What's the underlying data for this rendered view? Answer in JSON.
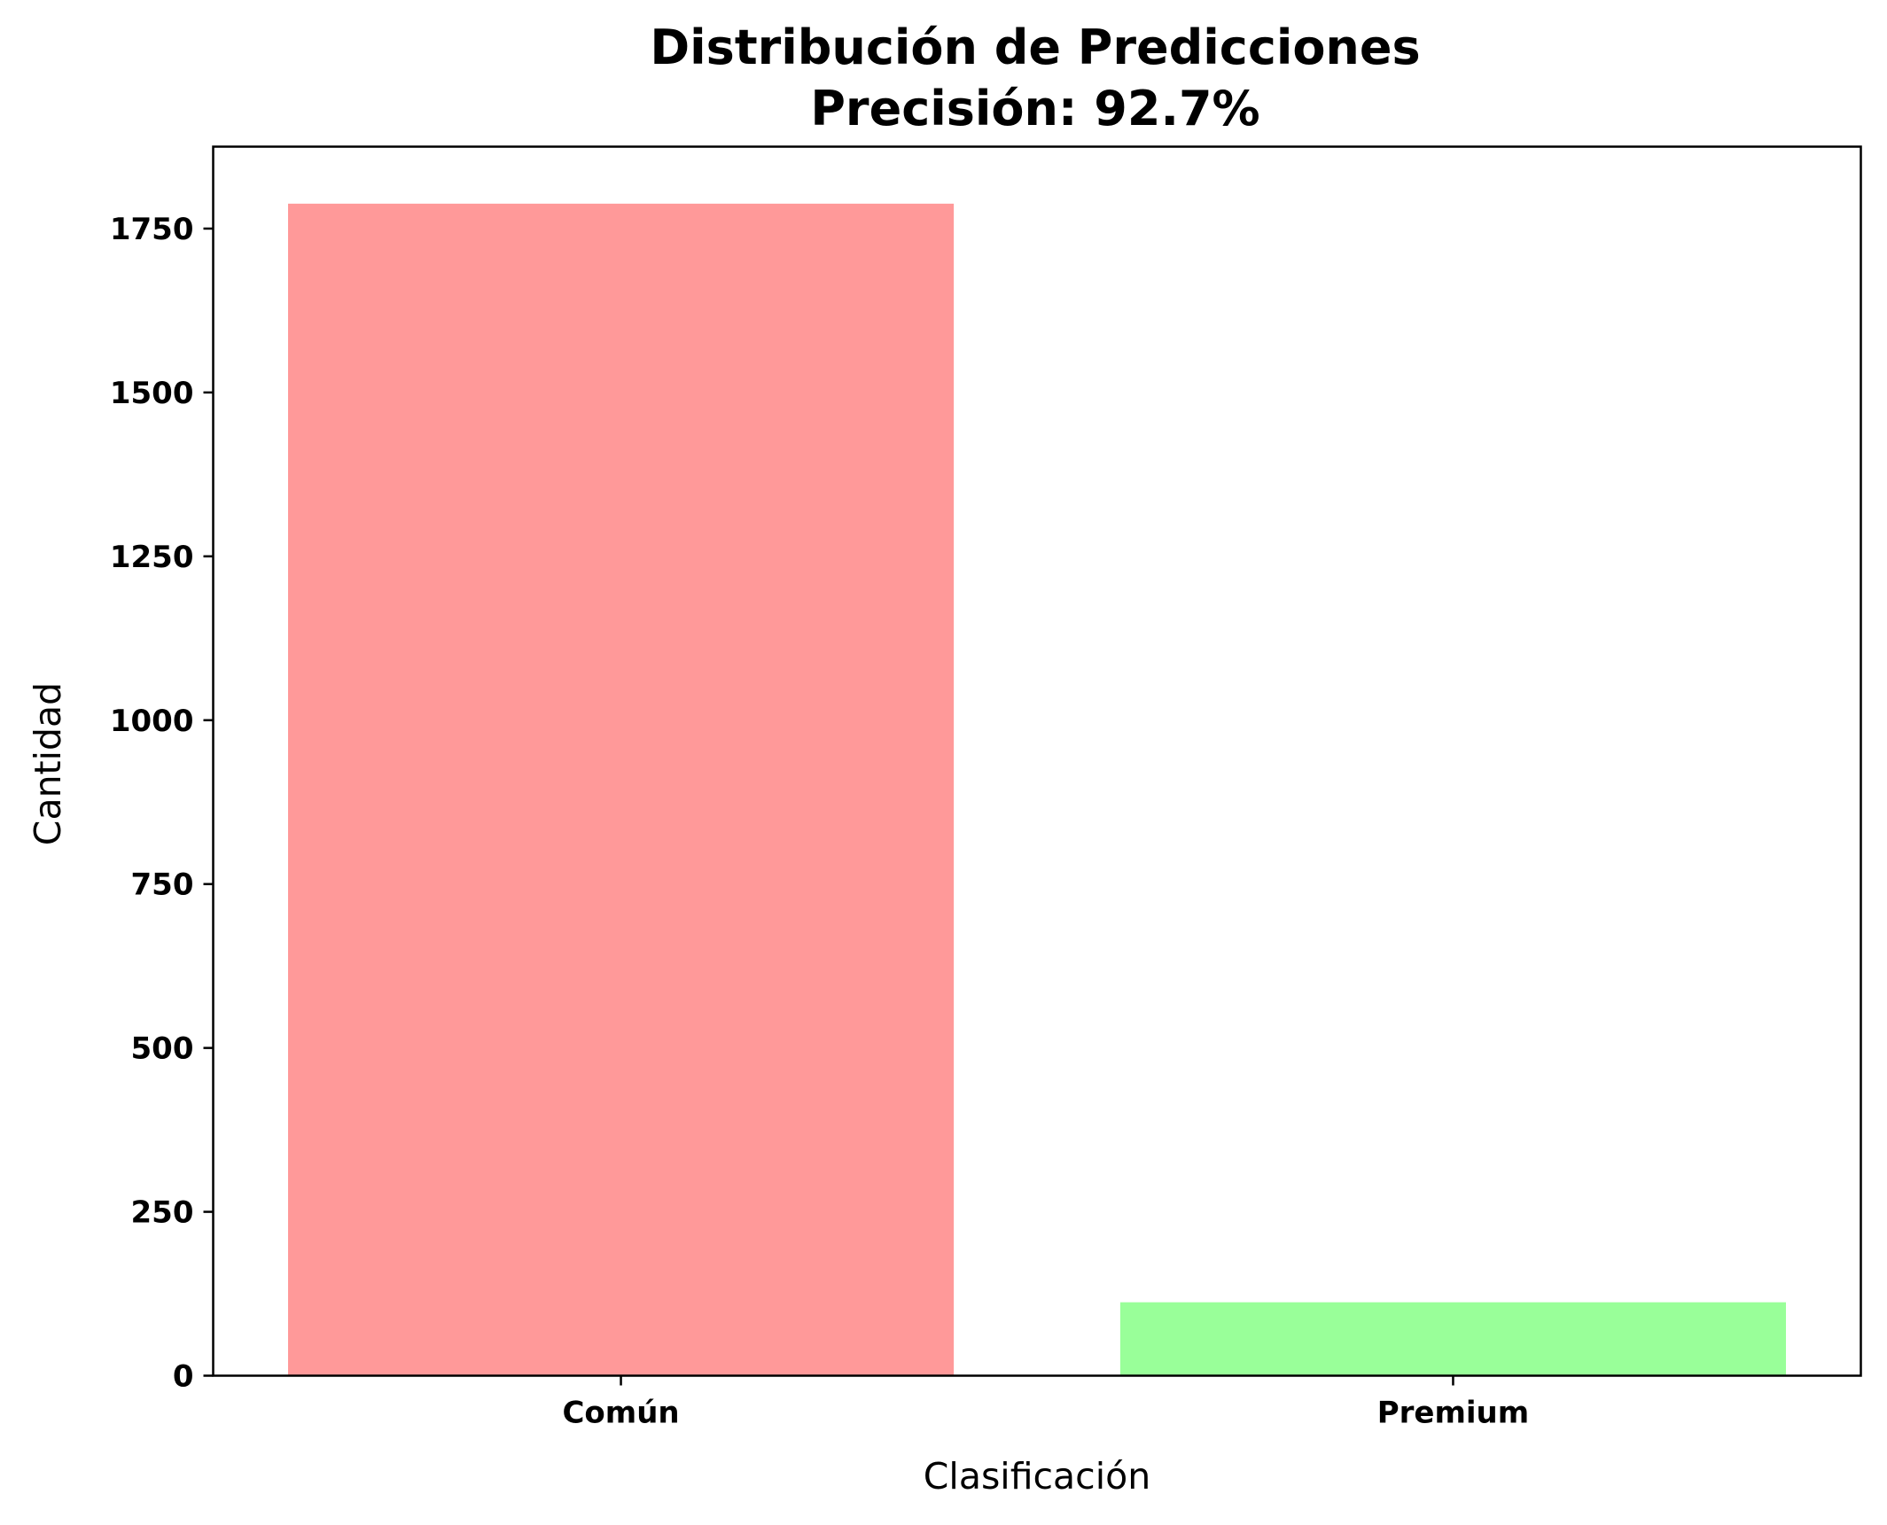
{
  "chart_data": {
    "type": "bar",
    "title": "Distribución de Predicciones",
    "subtitle": "Precisión: 92.7%",
    "xlabel": "Clasificación",
    "ylabel": "Cantidad",
    "categories": [
      "Común",
      "Premium"
    ],
    "values": [
      1788,
      112
    ],
    "colors": [
      "#ff9999",
      "#99ff99"
    ],
    "ylim": [
      0,
      1875
    ],
    "yticks": [
      0,
      250,
      500,
      750,
      1000,
      1250,
      1500,
      1750
    ],
    "grid": false,
    "legend": "none"
  }
}
